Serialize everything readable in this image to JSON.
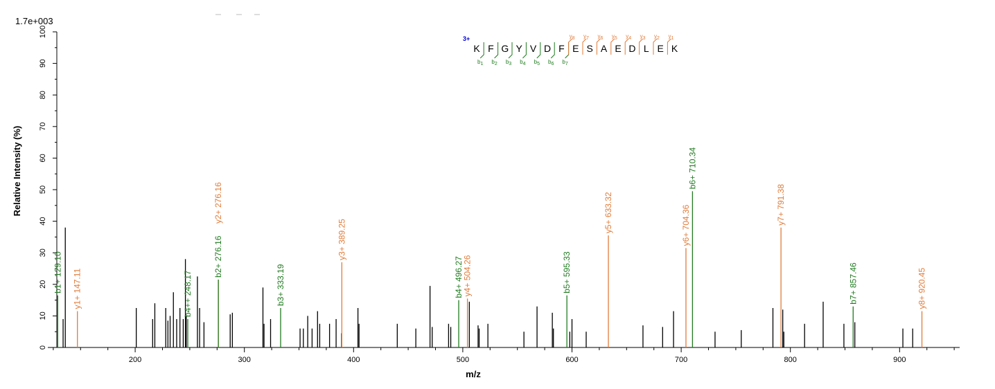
{
  "colors": {
    "b_ion": "#1f7a1f",
    "y_ion": "#e07b39",
    "unmatched": "#000000",
    "charge": "#0000cc"
  },
  "chart_data": {
    "type": "bar",
    "scale_label": "1.7e+003",
    "xlabel": "m/z",
    "ylabel": "Relative   Intensity (%)",
    "xlim": [
      120,
      955
    ],
    "ylim": [
      0,
      100
    ],
    "x_ticks": [
      200,
      300,
      400,
      500,
      600,
      700,
      800,
      900
    ],
    "y_ticks": [
      0,
      10,
      20,
      30,
      40,
      50,
      60,
      70,
      80,
      90,
      100
    ],
    "unmatched_peaks": [
      {
        "x": 134,
        "y": 9
      },
      {
        "x": 136,
        "y": 38
      },
      {
        "x": 201,
        "y": 12.5
      },
      {
        "x": 216,
        "y": 9
      },
      {
        "x": 218,
        "y": 14
      },
      {
        "x": 228,
        "y": 12.5
      },
      {
        "x": 230,
        "y": 8.5
      },
      {
        "x": 232,
        "y": 10
      },
      {
        "x": 235,
        "y": 17.5
      },
      {
        "x": 238,
        "y": 9
      },
      {
        "x": 241,
        "y": 12.5
      },
      {
        "x": 244,
        "y": 9
      },
      {
        "x": 246,
        "y": 28
      },
      {
        "x": 246.8,
        "y": 10
      },
      {
        "x": 257,
        "y": 22.5
      },
      {
        "x": 259,
        "y": 12.5
      },
      {
        "x": 263,
        "y": 8
      },
      {
        "x": 287,
        "y": 10.5
      },
      {
        "x": 289,
        "y": 11
      },
      {
        "x": 317,
        "y": 19
      },
      {
        "x": 318,
        "y": 7.5
      },
      {
        "x": 324,
        "y": 9
      },
      {
        "x": 351,
        "y": 6
      },
      {
        "x": 354,
        "y": 6
      },
      {
        "x": 358,
        "y": 10
      },
      {
        "x": 362,
        "y": 6
      },
      {
        "x": 367,
        "y": 11.5
      },
      {
        "x": 369,
        "y": 7.5
      },
      {
        "x": 378,
        "y": 7.5
      },
      {
        "x": 384,
        "y": 9
      },
      {
        "x": 389,
        "y": 4.5
      },
      {
        "x": 404,
        "y": 12.5
      },
      {
        "x": 405,
        "y": 7.5
      },
      {
        "x": 440,
        "y": 7.5
      },
      {
        "x": 457,
        "y": 6
      },
      {
        "x": 470,
        "y": 19.5
      },
      {
        "x": 472,
        "y": 6.5
      },
      {
        "x": 487,
        "y": 7.5
      },
      {
        "x": 489,
        "y": 6.5
      },
      {
        "x": 506,
        "y": 14.5
      },
      {
        "x": 514,
        "y": 7
      },
      {
        "x": 515,
        "y": 6
      },
      {
        "x": 523,
        "y": 7.5
      },
      {
        "x": 556,
        "y": 5
      },
      {
        "x": 568,
        "y": 13
      },
      {
        "x": 582,
        "y": 11
      },
      {
        "x": 583,
        "y": 6
      },
      {
        "x": 598,
        "y": 5
      },
      {
        "x": 600,
        "y": 9
      },
      {
        "x": 613,
        "y": 5
      },
      {
        "x": 665,
        "y": 7
      },
      {
        "x": 683,
        "y": 6.5
      },
      {
        "x": 693,
        "y": 11.5
      },
      {
        "x": 731,
        "y": 5
      },
      {
        "x": 755,
        "y": 5.5
      },
      {
        "x": 784,
        "y": 12.5
      },
      {
        "x": 793,
        "y": 12
      },
      {
        "x": 794,
        "y": 5
      },
      {
        "x": 813,
        "y": 7.5
      },
      {
        "x": 830,
        "y": 14.5
      },
      {
        "x": 849,
        "y": 7.5
      },
      {
        "x": 859,
        "y": 8
      },
      {
        "x": 903,
        "y": 6
      },
      {
        "x": 912,
        "y": 6
      }
    ],
    "b_ions": [
      {
        "x": 129.1,
        "y": 16.5,
        "label": "b1+ 129.10"
      },
      {
        "x": 248.17,
        "y": 9,
        "label": "b4++ 248.17"
      },
      {
        "x": 276.16,
        "y": 21.5,
        "label": "b2+ 276.16"
      },
      {
        "x": 333.19,
        "y": 12.5,
        "label": "b3+ 333.19"
      },
      {
        "x": 496.27,
        "y": 15,
        "label": "b4+ 496.27"
      },
      {
        "x": 595.33,
        "y": 16.5,
        "label": "b5+ 595.33"
      },
      {
        "x": 710.34,
        "y": 49.5,
        "label": "b6+ 710.34"
      },
      {
        "x": 857.46,
        "y": 13,
        "label": "b7+ 857.46"
      }
    ],
    "y_ions": [
      {
        "x": 147.11,
        "y": 11.5,
        "label": "y1+ 147.11"
      },
      {
        "x": 276.16,
        "y": 21.5,
        "label": "y2+ 276.16",
        "label_top": true
      },
      {
        "x": 389.25,
        "y": 27,
        "label": "y3+ 389.25"
      },
      {
        "x": 504.26,
        "y": 15.5,
        "label": "y4+ 504.26"
      },
      {
        "x": 633.32,
        "y": 35.5,
        "label": "y5+ 633.32"
      },
      {
        "x": 704.36,
        "y": 31.5,
        "label": "y6+ 704.36"
      },
      {
        "x": 791.38,
        "y": 38,
        "label": "y7+ 791.38"
      },
      {
        "x": 920.45,
        "y": 11.5,
        "label": "y8+ 920.45"
      }
    ],
    "sequence": {
      "charge": "3+",
      "residues": [
        "K",
        "F",
        "G",
        "Y",
        "V",
        "D",
        "F",
        "E",
        "S",
        "A",
        "E",
        "D",
        "L",
        "E",
        "K"
      ],
      "b_marks": [
        {
          "after": 0,
          "label": "b",
          "sub": "1"
        },
        {
          "after": 1,
          "label": "b",
          "sub": "2"
        },
        {
          "after": 2,
          "label": "b",
          "sub": "3"
        },
        {
          "after": 3,
          "label": "b",
          "sub": "4"
        },
        {
          "after": 4,
          "label": "b",
          "sub": "5"
        },
        {
          "after": 5,
          "label": "b",
          "sub": "6"
        },
        {
          "after": 6,
          "label": "b",
          "sub": "7"
        }
      ],
      "y_marks": [
        {
          "after": 6,
          "label": "y",
          "sub": "8"
        },
        {
          "after": 7,
          "label": "y",
          "sub": "7"
        },
        {
          "after": 8,
          "label": "y",
          "sub": "6"
        },
        {
          "after": 9,
          "label": "y",
          "sub": "5"
        },
        {
          "after": 10,
          "label": "y",
          "sub": "4"
        },
        {
          "after": 11,
          "label": "y",
          "sub": "3"
        },
        {
          "after": 12,
          "label": "y",
          "sub": "2"
        },
        {
          "after": 13,
          "label": "y",
          "sub": "1"
        }
      ]
    }
  }
}
